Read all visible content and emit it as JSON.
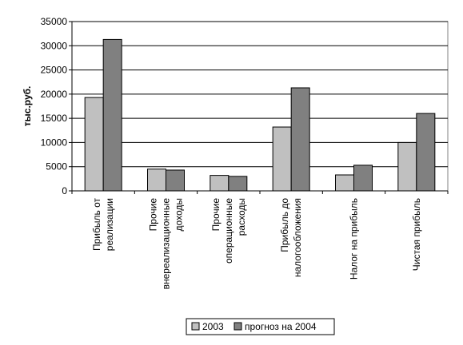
{
  "chart_data": {
    "type": "bar",
    "ylabel": "тыс.руб.",
    "ylim": [
      0,
      35000
    ],
    "yticks": [
      0,
      5000,
      10000,
      15000,
      20000,
      25000,
      30000,
      35000
    ],
    "grid": true,
    "legend_position": "bottom",
    "categories": [
      [
        "Прибыль от",
        "реализации"
      ],
      [
        "Прочие",
        "внереализационные",
        "доходы"
      ],
      [
        "Прочие",
        "операционные",
        "расходы"
      ],
      [
        "Прибыль до",
        "налогообложения"
      ],
      [
        "Налог на прибыль"
      ],
      [
        "Чистая прибыль"
      ]
    ],
    "series": [
      {
        "name": "2003",
        "color": "#c0c0c0",
        "values": [
          19300,
          4500,
          3200,
          13200,
          3300,
          10000
        ]
      },
      {
        "name": "прогноз на 2004",
        "color": "#808080",
        "values": [
          31300,
          4300,
          3000,
          21300,
          5300,
          16000
        ]
      }
    ]
  }
}
